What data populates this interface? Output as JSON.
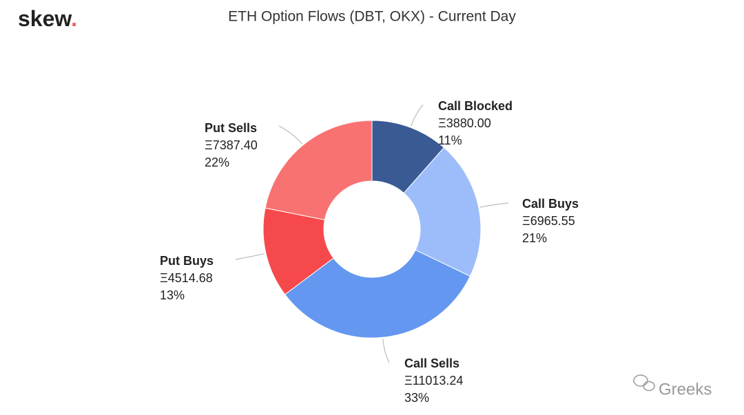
{
  "brand": "skew",
  "brand_dot": ".",
  "watermark": "Greeks",
  "chart_data": {
    "type": "donut",
    "title": "ETH Option Flows (DBT, OKX) - Current Day",
    "categories": [
      "Call Blocked",
      "Call Buys",
      "Call Sells",
      "Put Buys",
      "Put Sells"
    ],
    "values": [
      3880.0,
      6965.55,
      11013.24,
      4514.68,
      7387.4
    ],
    "value_labels": [
      "Ξ3880.00",
      "Ξ6965.55",
      "Ξ11013.24",
      "Ξ4514.68",
      "Ξ7387.40"
    ],
    "percent_labels": [
      "11%",
      "21%",
      "33%",
      "13%",
      "22%"
    ],
    "colors": [
      "#3a5a94",
      "#9dbdfa",
      "#6497f0",
      "#f5494b",
      "#f87272"
    ]
  }
}
